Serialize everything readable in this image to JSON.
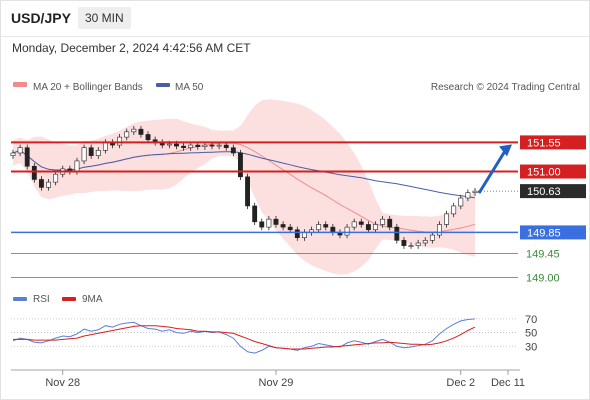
{
  "header": {
    "symbol": "USD/JPY",
    "timeframe": "30 MIN",
    "timestamp": "Monday, December 2, 2024 4:42:56 AM CET"
  },
  "legend": {
    "ma20_label": "MA 20 + Bollinger Bands",
    "ma20_color": "#f28c8c",
    "ma50_label": "MA 50",
    "ma50_color": "#4a5ea8",
    "watermark": "Research © 2024 Trading Central"
  },
  "rsi_legend": {
    "rsi_label": "RSI",
    "rsi_color": "#5b7fd4",
    "ma_label": "9MA",
    "ma_color": "#d62020"
  },
  "chart_data": [
    {
      "type": "candlestick",
      "title": "USD/JPY",
      "x_tick_labels": [
        "Nov 28",
        "Nov 29",
        "Dec 2",
        "Dec 11"
      ],
      "ylim": [
        148.8,
        152.2
      ],
      "price_levels": [
        {
          "label": "151.55",
          "value": 151.55,
          "kind": "resistance",
          "color": "#d42020"
        },
        {
          "label": "151.00",
          "value": 151.0,
          "kind": "resistance",
          "color": "#d42020"
        },
        {
          "label": "150.63",
          "value": 150.63,
          "kind": "last-price",
          "color": "#2b2b2b"
        },
        {
          "label": "149.85",
          "value": 149.85,
          "kind": "pivot",
          "color": "#3a6fe0"
        },
        {
          "label": "149.45",
          "value": 149.45,
          "kind": "support",
          "color": "#3a8a3a"
        },
        {
          "label": "149.00",
          "value": 149.0,
          "kind": "support",
          "color": "#3a8a3a"
        }
      ],
      "forecast_arrow": {
        "from": 150.63,
        "to": 151.55,
        "color": "#2060c0"
      },
      "close": [
        151.35,
        151.45,
        151.1,
        150.85,
        150.7,
        150.8,
        150.95,
        151.05,
        151.0,
        151.2,
        151.45,
        151.3,
        151.4,
        151.55,
        151.5,
        151.65,
        151.75,
        151.8,
        151.7,
        151.6,
        151.55,
        151.5,
        151.52,
        151.48,
        151.45,
        151.5,
        151.47,
        151.5,
        151.48,
        151.5,
        151.45,
        151.35,
        150.9,
        150.35,
        150.05,
        149.95,
        150.1,
        150.0,
        149.95,
        149.9,
        149.75,
        149.85,
        149.9,
        150.0,
        149.95,
        149.85,
        149.8,
        149.95,
        150.05,
        150.0,
        149.9,
        150.0,
        150.1,
        149.95,
        149.7,
        149.6,
        149.6,
        149.65,
        149.7,
        149.8,
        150.0,
        150.2,
        150.35,
        150.5,
        150.6,
        150.63
      ]
    },
    {
      "type": "line",
      "title": "RSI",
      "y_tick_labels": [
        "70",
        "50",
        "30"
      ],
      "ylim": [
        10,
        80
      ],
      "series": [
        {
          "name": "RSI",
          "values": [
            38,
            42,
            40,
            36,
            35,
            38,
            42,
            45,
            44,
            48,
            55,
            52,
            54,
            60,
            58,
            62,
            64,
            65,
            60,
            56,
            55,
            52,
            54,
            50,
            49,
            52,
            50,
            52,
            50,
            51,
            47,
            42,
            30,
            22,
            20,
            24,
            30,
            28,
            27,
            26,
            24,
            28,
            30,
            34,
            32,
            30,
            29,
            35,
            38,
            36,
            33,
            37,
            40,
            36,
            30,
            28,
            29,
            31,
            33,
            38,
            48,
            56,
            62,
            67,
            69,
            70
          ]
        },
        {
          "name": "9MA",
          "values": [
            40,
            40,
            40,
            39,
            39,
            39,
            39,
            40,
            41,
            42,
            45,
            47,
            49,
            51,
            53,
            55,
            57,
            59,
            60,
            60,
            60,
            59,
            58,
            56,
            55,
            54,
            52,
            52,
            51,
            51,
            50,
            49,
            45,
            41,
            37,
            34,
            31,
            28,
            27,
            26,
            26,
            26,
            27,
            28,
            29,
            29,
            30,
            31,
            32,
            33,
            34,
            35,
            35,
            36,
            35,
            34,
            33,
            33,
            32,
            33,
            35,
            38,
            42,
            47,
            53,
            58
          ]
        }
      ]
    }
  ]
}
